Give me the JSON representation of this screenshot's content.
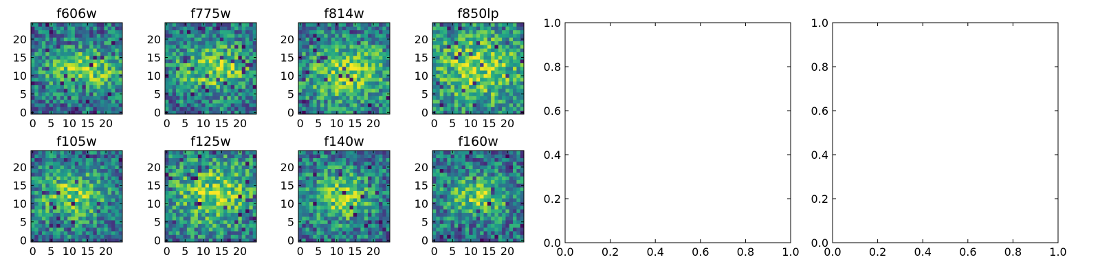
{
  "chart_data": [
    {
      "type": "heatmap",
      "title": "f606w",
      "xticks": [
        "0",
        "5",
        "10",
        "15",
        "20"
      ],
      "yticks": [
        "0",
        "5",
        "10",
        "15",
        "20"
      ],
      "xlim": [
        -0.5,
        24.5
      ],
      "ylim": [
        -0.5,
        24.5
      ],
      "grid_size": [
        25,
        25
      ],
      "colormap": "viridis",
      "bright_region": {
        "center": [
          14,
          12
        ],
        "spread": [
          8,
          4
        ]
      },
      "seed": 11
    },
    {
      "type": "heatmap",
      "title": "f775w",
      "xticks": [
        "0",
        "5",
        "10",
        "15",
        "20"
      ],
      "yticks": [
        "0",
        "5",
        "10",
        "15",
        "20"
      ],
      "xlim": [
        -0.5,
        24.5
      ],
      "ylim": [
        -0.5,
        24.5
      ],
      "grid_size": [
        25,
        25
      ],
      "colormap": "viridis",
      "bright_region": {
        "center": [
          13,
          12
        ],
        "spread": [
          8,
          5
        ]
      },
      "seed": 23
    },
    {
      "type": "heatmap",
      "title": "f814w",
      "xticks": [
        "0",
        "5",
        "10",
        "15",
        "20"
      ],
      "yticks": [
        "0",
        "5",
        "10",
        "15",
        "20"
      ],
      "xlim": [
        -0.5,
        24.5
      ],
      "ylim": [
        -0.5,
        24.5
      ],
      "grid_size": [
        25,
        25
      ],
      "colormap": "viridis",
      "bright_region": {
        "center": [
          13,
          11
        ],
        "spread": [
          9,
          6
        ]
      },
      "seed": 37
    },
    {
      "type": "heatmap",
      "title": "f850lp",
      "xticks": [
        "0",
        "5",
        "10",
        "15",
        "20"
      ],
      "yticks": [
        "0",
        "5",
        "10",
        "15",
        "20"
      ],
      "xlim": [
        -0.5,
        24.5
      ],
      "ylim": [
        -0.5,
        24.5
      ],
      "grid_size": [
        25,
        25
      ],
      "colormap": "viridis",
      "bright_region": {
        "center": [
          12,
          12
        ],
        "spread": [
          10,
          8
        ]
      },
      "seed": 41
    },
    {
      "type": "heatmap",
      "title": "f105w",
      "xticks": [
        "0",
        "5",
        "10",
        "15",
        "20"
      ],
      "yticks": [
        "0",
        "5",
        "10",
        "15",
        "20"
      ],
      "xlim": [
        -0.5,
        24.5
      ],
      "ylim": [
        -0.5,
        24.5
      ],
      "grid_size": [
        25,
        25
      ],
      "colormap": "viridis",
      "bright_region": {
        "center": [
          11,
          12
        ],
        "spread": [
          7,
          5
        ]
      },
      "seed": 53
    },
    {
      "type": "heatmap",
      "title": "f125w",
      "xticks": [
        "0",
        "5",
        "10",
        "15",
        "20"
      ],
      "yticks": [
        "0",
        "5",
        "10",
        "15",
        "20"
      ],
      "xlim": [
        -0.5,
        24.5
      ],
      "ylim": [
        -0.5,
        24.5
      ],
      "grid_size": [
        25,
        25
      ],
      "colormap": "viridis",
      "bright_region": {
        "center": [
          13,
          13
        ],
        "spread": [
          9,
          7
        ]
      },
      "seed": 67
    },
    {
      "type": "heatmap",
      "title": "f140w",
      "xticks": [
        "0",
        "5",
        "10",
        "15",
        "20"
      ],
      "yticks": [
        "0",
        "5",
        "10",
        "15",
        "20"
      ],
      "xlim": [
        -0.5,
        24.5
      ],
      "ylim": [
        -0.5,
        24.5
      ],
      "grid_size": [
        25,
        25
      ],
      "colormap": "viridis",
      "bright_region": {
        "center": [
          11,
          12
        ],
        "spread": [
          6,
          5
        ]
      },
      "seed": 79
    },
    {
      "type": "heatmap",
      "title": "f160w",
      "xticks": [
        "0",
        "5",
        "10",
        "15",
        "20"
      ],
      "yticks": [
        "0",
        "5",
        "10",
        "15",
        "20"
      ],
      "xlim": [
        -0.5,
        24.5
      ],
      "ylim": [
        -0.5,
        24.5
      ],
      "grid_size": [
        25,
        25
      ],
      "colormap": "viridis",
      "bright_region": {
        "center": [
          12,
          12
        ],
        "spread": [
          6,
          4
        ]
      },
      "seed": 97
    },
    {
      "type": "line",
      "title": "",
      "xlim": [
        0.0,
        1.0
      ],
      "ylim": [
        0.0,
        1.0
      ],
      "xticks": [
        "0.0",
        "0.2",
        "0.4",
        "0.6",
        "0.8",
        "1.0"
      ],
      "yticks": [
        "0.0",
        "0.2",
        "0.4",
        "0.6",
        "0.8",
        "1.0"
      ],
      "series": []
    },
    {
      "type": "line",
      "title": "",
      "xlim": [
        0.0,
        1.0
      ],
      "ylim": [
        0.0,
        1.0
      ],
      "xticks": [
        "0.0",
        "0.2",
        "0.4",
        "0.6",
        "0.8",
        "1.0"
      ],
      "yticks": [
        "0.0",
        "0.2",
        "0.4",
        "0.6",
        "0.8",
        "1.0"
      ],
      "series": []
    }
  ]
}
